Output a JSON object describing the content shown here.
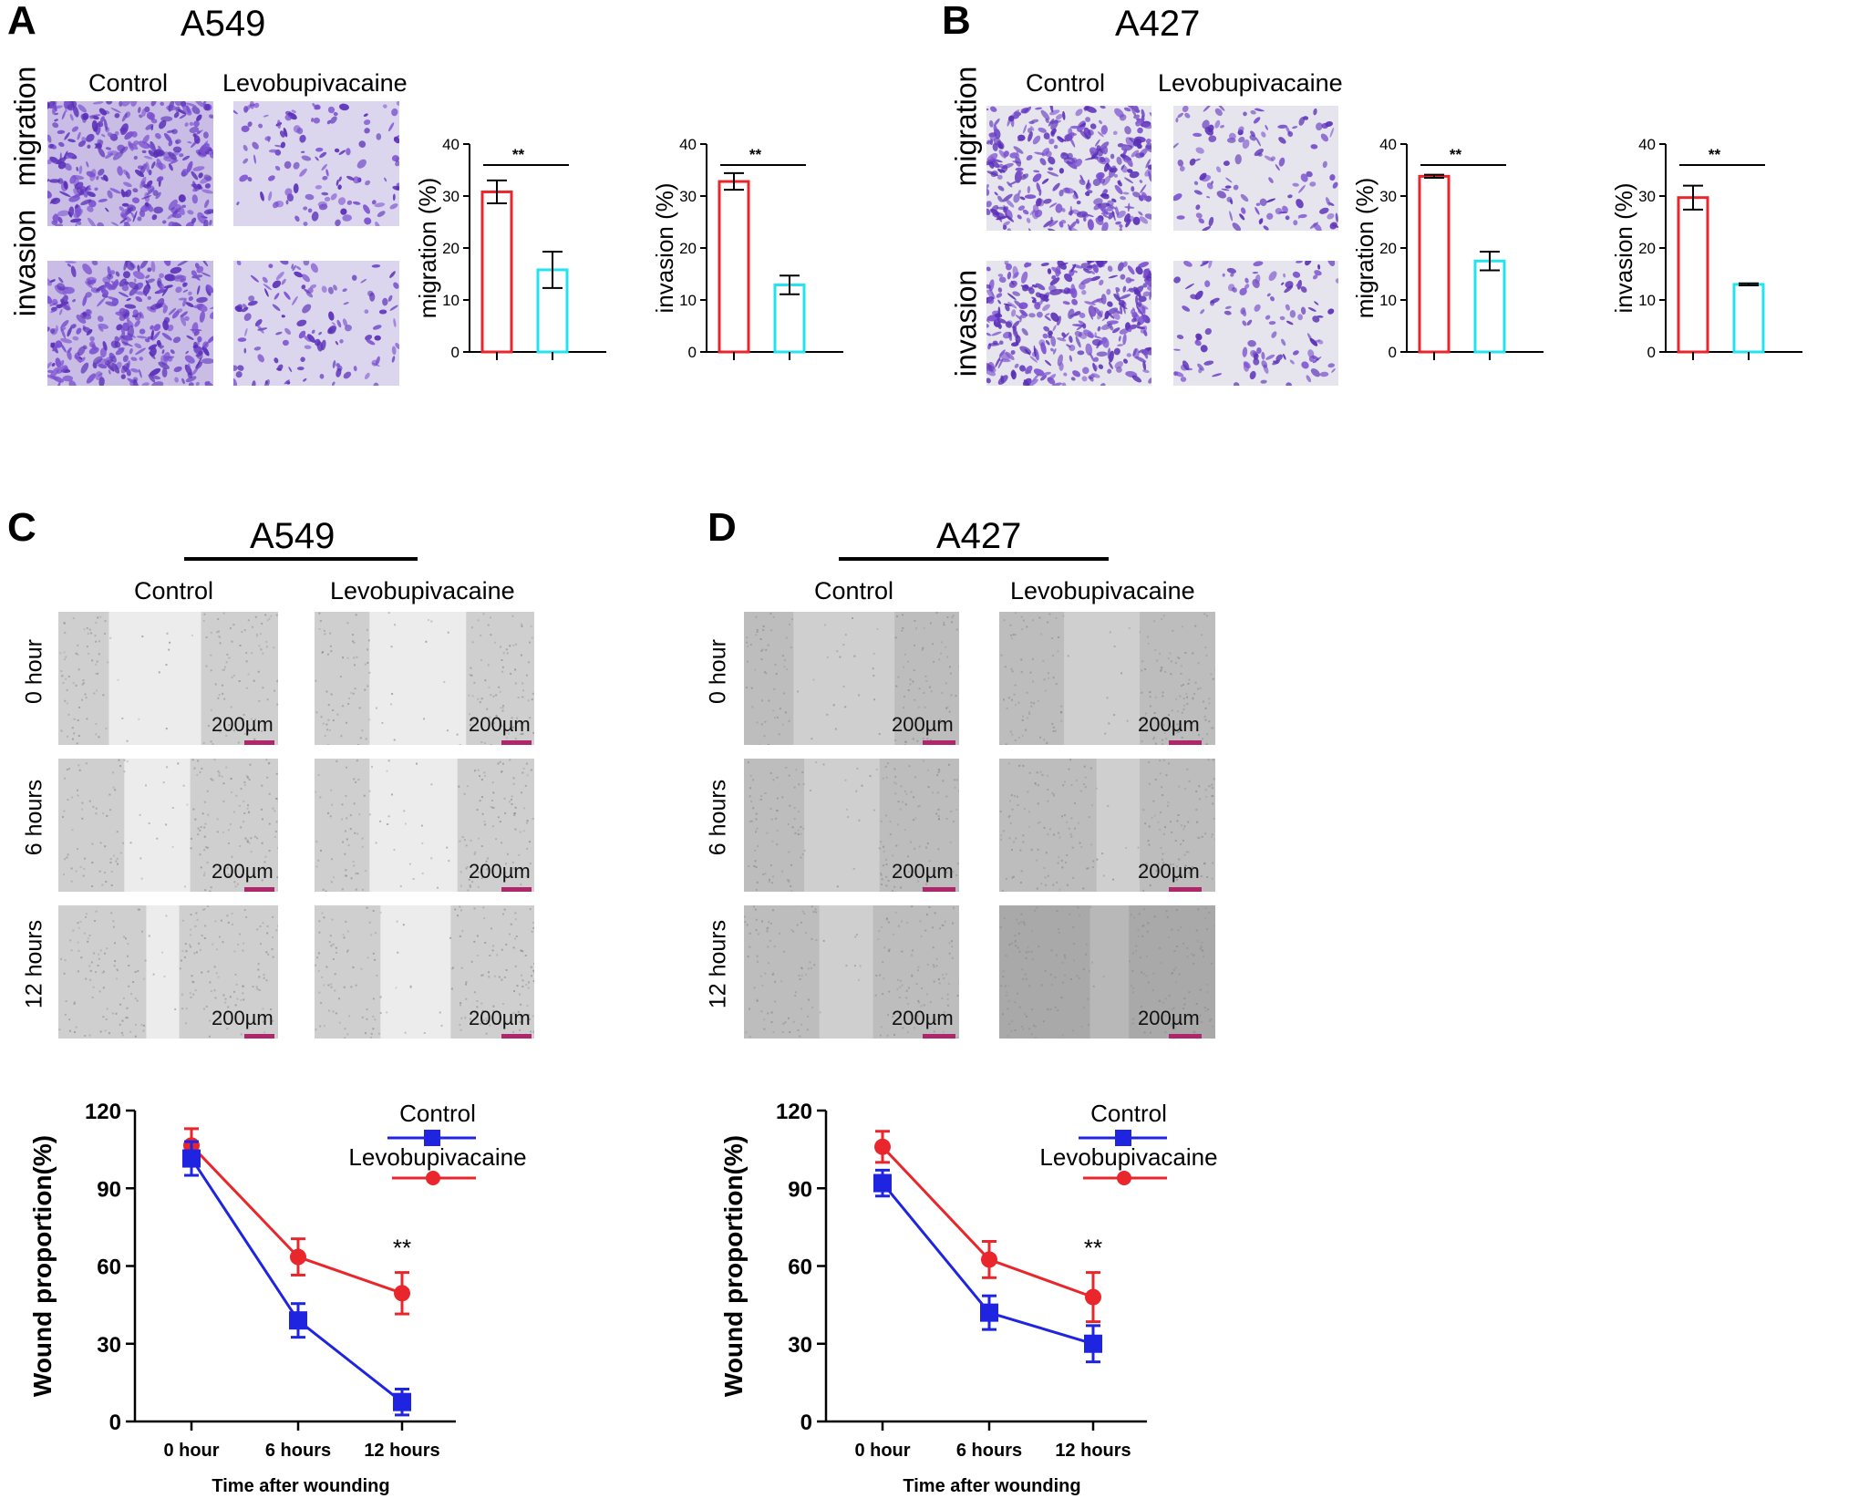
{
  "panels": {
    "A": {
      "letter": "A",
      "cell_line": "A549"
    },
    "B": {
      "letter": "B",
      "cell_line": "A427"
    },
    "C": {
      "letter": "C",
      "cell_line": "A549"
    },
    "D": {
      "letter": "D",
      "cell_line": "A427"
    }
  },
  "labels": {
    "control": "Control",
    "treatment": "Levobupivacaine",
    "migration": "migration",
    "invasion": "invasion",
    "hour0": "0 hour",
    "hour6": "6 hours",
    "hour12": "12 hours",
    "scale": "200µm"
  },
  "colors": {
    "control": "#e8262b",
    "treatment": "#22e3ef",
    "line_control": "#1f24e0",
    "line_treatment": "#e8262b",
    "stain": "#6a3cc4",
    "scalebar": "#b0266b"
  },
  "chart_data": [
    {
      "id": "A-migration",
      "type": "bar",
      "ylabel": "migration (%)",
      "ylim": [
        0,
        40
      ],
      "yticks": [
        0,
        10,
        20,
        30,
        40
      ],
      "categories": [
        "Control",
        "Levobupivacaine"
      ],
      "values": [
        30.8,
        15.8
      ],
      "errors": [
        2.2,
        3.5
      ],
      "significance": "**"
    },
    {
      "id": "A-invasion",
      "type": "bar",
      "ylabel": "invasion (%)",
      "ylim": [
        0,
        40
      ],
      "yticks": [
        0,
        10,
        20,
        30,
        40
      ],
      "categories": [
        "Control",
        "Levobupivacaine"
      ],
      "values": [
        32.8,
        12.9
      ],
      "errors": [
        1.6,
        1.8
      ],
      "significance": "**"
    },
    {
      "id": "B-migration",
      "type": "bar",
      "ylabel": "migration (%)",
      "ylim": [
        0,
        40
      ],
      "yticks": [
        0,
        10,
        20,
        30,
        40
      ],
      "categories": [
        "Control",
        "Levobupivacaine"
      ],
      "values": [
        33.8,
        17.5
      ],
      "errors": [
        0.3,
        1.8
      ],
      "significance": "**"
    },
    {
      "id": "B-invasion",
      "type": "bar",
      "ylabel": "invasion (%)",
      "ylim": [
        0,
        40
      ],
      "yticks": [
        0,
        10,
        20,
        30,
        40
      ],
      "categories": [
        "Control",
        "Levobupivacaine"
      ],
      "values": [
        29.7,
        13.0
      ],
      "errors": [
        2.3,
        0.2
      ],
      "significance": "**"
    },
    {
      "id": "C-wound",
      "type": "line",
      "xlabel": "Time after wounding",
      "ylabel": "Wound proportion(%)",
      "ylim": [
        0,
        120
      ],
      "yticks": [
        0,
        30,
        60,
        90,
        120
      ],
      "categories": [
        "0 hour",
        "6 hours",
        "12 hours"
      ],
      "series": [
        {
          "name": "Control",
          "values": [
            101.5,
            39.0,
            7.5
          ],
          "errors": [
            6.5,
            6.5,
            5.0
          ]
        },
        {
          "name": "Levobupivacaine",
          "values": [
            106.5,
            63.5,
            49.5
          ],
          "errors": [
            6.5,
            7.0,
            8.0
          ]
        }
      ],
      "annotation": "**"
    },
    {
      "id": "D-wound",
      "type": "line",
      "xlabel": "Time after wounding",
      "ylabel": "Wound proportion(%)",
      "ylim": [
        0,
        120
      ],
      "yticks": [
        0,
        30,
        60,
        90,
        120
      ],
      "categories": [
        "0 hour",
        "6 hours",
        "12 hours"
      ],
      "series": [
        {
          "name": "Control",
          "values": [
            92.0,
            42.0,
            30.0
          ],
          "errors": [
            5.0,
            6.5,
            7.0
          ]
        },
        {
          "name": "Levobupivacaine",
          "values": [
            106.0,
            62.5,
            48.0
          ],
          "errors": [
            6.0,
            7.0,
            9.5
          ]
        }
      ],
      "annotation": "**"
    }
  ]
}
